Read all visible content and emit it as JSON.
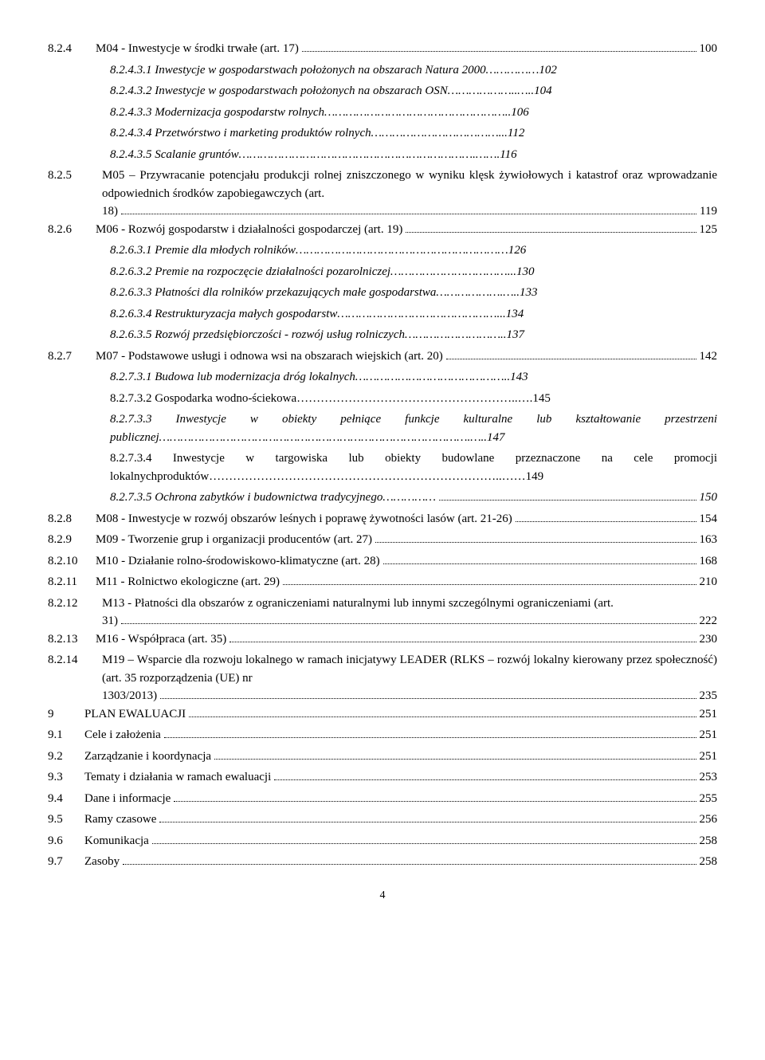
{
  "entries": [
    {
      "num": "8.2.4",
      "title": "M04 - Inwestycje w środki trwałe (art. 17)",
      "page": "100",
      "numCol": true,
      "indent": 0,
      "italic": false,
      "multiline": false
    },
    {
      "num": "",
      "title": "8.2.4.3.1 Inwestycje w gospodarstwach położonych na obszarach Natura 2000……………102",
      "page": "",
      "indent": 3,
      "italic": true,
      "nodots": true
    },
    {
      "num": "",
      "title": "8.2.4.3.2 Inwestycje w gospodarstwach położonych na obszarach OSN………………..…..104",
      "page": "",
      "indent": 3,
      "italic": true,
      "nodots": true
    },
    {
      "num": "",
      "title": "8.2.4.3.3 Modernizacja gospodarstw rolnych……………………………………………..106",
      "page": "",
      "indent": 3,
      "italic": true,
      "nodots": true
    },
    {
      "num": "",
      "title": "8.2.4.3.4 Przetwórstwo i marketing produktów rolnych………………………………...112",
      "page": "",
      "indent": 3,
      "italic": true,
      "nodots": true
    },
    {
      "num": "",
      "title": "8.2.4.3.5 Scalanie gruntów………………………………………………………….…….116",
      "page": "",
      "indent": 3,
      "italic": true,
      "nodots": true
    },
    {
      "num": "8.2.5",
      "title": "M05 – Przywracanie potencjału produkcji rolnej zniszczonego w wyniku klęsk żywiołowych i katastrof oraz wprowadzanie odpowiednich środków zapobiegawczych (art. 18)",
      "page": "119",
      "numCol": true,
      "indent": 0,
      "italic": false,
      "multiline": true
    },
    {
      "num": "8.2.6",
      "title": "M06 - Rozwój gospodarstw i działalności gospodarczej (art. 19)",
      "page": "125",
      "numCol": true,
      "indent": 0,
      "italic": false
    },
    {
      "num": "",
      "title": "8.2.6.3.1 Premie dla młodych rolników……………………………………………………126",
      "page": "",
      "indent": 3,
      "italic": true,
      "nodots": true
    },
    {
      "num": "",
      "title": "8.2.6.3.2 Premie na rozpoczęcie działalności pozarolniczej……………………………...130",
      "page": "",
      "indent": 3,
      "italic": true,
      "nodots": true
    },
    {
      "num": "",
      "title": "8.2.6.3.3 Płatności dla rolników przekazujących małe gospodarstwa……………….…..133",
      "page": "",
      "indent": 3,
      "italic": true,
      "nodots": true
    },
    {
      "num": "",
      "title": "8.2.6.3.4 Restrukturyzacja małych gospodarstw………………………………………...134",
      "page": "",
      "indent": 3,
      "italic": true,
      "nodots": true
    },
    {
      "num": "",
      "title": "8.2.6.3.5 Rozwój przedsiębiorczości - rozwój usług rolniczych………………………..137",
      "page": "",
      "indent": 3,
      "italic": true,
      "nodots": true
    },
    {
      "num": "8.2.7",
      "title": "M07 - Podstawowe usługi i odnowa wsi na obszarach wiejskich (art. 20)",
      "page": "142",
      "numCol": true,
      "indent": 0,
      "italic": false
    },
    {
      "num": "",
      "title": "8.2.7.3.1 Budowa lub modernizacja dróg lokalnych……………………………………..143",
      "page": "",
      "indent": 3,
      "italic": true,
      "nodots": true
    },
    {
      "num": "",
      "title": "8.2.7.3.2 Gospodarka wodno-ściekowa………………………………………………..….145",
      "page": "",
      "indent": 3,
      "italic": false,
      "nodots": true
    },
    {
      "num": "",
      "title": "8.2.7.3.3 Inwestycje w obiekty pełniące funkcje kulturalne lub kształtowanie przestrzeni publicznej…………………………………………………………………………….…..147",
      "page": "",
      "indent": 3,
      "italic": true,
      "nodots": true,
      "justify": true
    },
    {
      "num": "",
      "title": "8.2.7.3.4 Inwestycje w targowiska lub obiekty budowlane przeznaczone na cele promocji lokalnychproduktów………………………………………………………………..……149",
      "page": "",
      "indent": 3,
      "italic": false,
      "nodots": true,
      "justify": true,
      "italicTail": "lokalnychproduktów………………………………………………………………..……149"
    },
    {
      "num": "",
      "title": "8.2.7.3.5 Ochrona zabytków i budownictwa tradycyjnego……………",
      "page": "150",
      "indent": 3,
      "italic": true
    },
    {
      "num": "8.2.8",
      "title": "M08 - Inwestycje w rozwój obszarów leśnych i poprawę żywotności lasów (art. 21-26)",
      "page": "154",
      "numCol": true,
      "indent": 0,
      "italic": false
    },
    {
      "num": "8.2.9",
      "title": "M09 - Tworzenie grup i organizacji producentów (art. 27)",
      "page": "163",
      "numCol": true,
      "indent": 0,
      "italic": false
    },
    {
      "num": "8.2.10",
      "title": "M10 - Działanie rolno-środowiskowo-klimatyczne (art. 28)",
      "page": "168",
      "numCol": true,
      "indent": 0,
      "italic": false
    },
    {
      "num": "8.2.11",
      "title": "M11 - Rolnictwo ekologiczne (art. 29)",
      "page": "210",
      "numCol": true,
      "indent": 0,
      "italic": false
    },
    {
      "num": "8.2.12",
      "title": "M13 - Płatności dla obszarów z ograniczeniami naturalnymi lub innymi szczególnymi ograniczeniami (art. 31)",
      "page": "222",
      "numCol": true,
      "indent": 0,
      "italic": false,
      "multiline": true
    },
    {
      "num": "8.2.13",
      "title": "M16 - Współpraca (art. 35)",
      "page": "230",
      "numCol": true,
      "indent": 0,
      "italic": false
    },
    {
      "num": "8.2.14",
      "title": "M19 – Wsparcie dla rozwoju lokalnego w ramach inicjatywy LEADER (RLKS – rozwój lokalny kierowany przez społeczność) (art. 35 rozporządzenia (UE) nr 1303/2013)",
      "page": "235",
      "numCol": true,
      "indent": 0,
      "italic": false,
      "multiline": true
    },
    {
      "num": "9",
      "title": "PLAN EWALUACJI",
      "page": "251",
      "numCol": true,
      "indent": 0,
      "italic": false,
      "topLevel": true
    },
    {
      "num": "9.1",
      "title": "Cele i założenia",
      "page": "251",
      "numCol": true,
      "indent": 0,
      "italic": false,
      "topLevel": true
    },
    {
      "num": "9.2",
      "title": "Zarządzanie i koordynacja",
      "page": "251",
      "numCol": true,
      "indent": 0,
      "italic": false,
      "topLevel": true
    },
    {
      "num": "9.3",
      "title": "Tematy i działania w ramach ewaluacji",
      "page": "253",
      "numCol": true,
      "indent": 0,
      "italic": false,
      "topLevel": true
    },
    {
      "num": "9.4",
      "title": "Dane i informacje",
      "page": "255",
      "numCol": true,
      "indent": 0,
      "italic": false,
      "topLevel": true
    },
    {
      "num": "9.5",
      "title": "Ramy czasowe",
      "page": "256",
      "numCol": true,
      "indent": 0,
      "italic": false,
      "topLevel": true
    },
    {
      "num": "9.6",
      "title": "Komunikacja",
      "page": "258",
      "numCol": true,
      "indent": 0,
      "italic": false,
      "topLevel": true
    },
    {
      "num": "9.7",
      "title": "Zasoby",
      "page": "258",
      "numCol": true,
      "indent": 0,
      "italic": false,
      "topLevel": true
    }
  ],
  "footerPage": "4"
}
